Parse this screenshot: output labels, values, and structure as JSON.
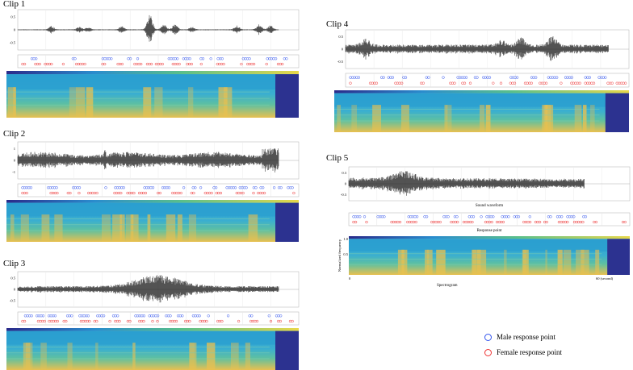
{
  "clips": [
    {
      "id": "clip1",
      "title": "Clip 1",
      "y_ticks": [
        "0.5",
        "0",
        "-0.5"
      ]
    },
    {
      "id": "clip2",
      "title": "Clip 2",
      "y_ticks": [
        "1",
        "0",
        "-1"
      ]
    },
    {
      "id": "clip3",
      "title": "Clip 3",
      "y_ticks": [
        "0.5",
        "0",
        "-0.5"
      ]
    },
    {
      "id": "clip4",
      "title": "Clip 4",
      "y_ticks": [
        "0.5",
        "0",
        "-0.5"
      ]
    },
    {
      "id": "clip5",
      "title": "Clip 5",
      "y_ticks": [
        "0.3",
        "0",
        "-0.3"
      ]
    }
  ],
  "captions": {
    "sound_waveform": "Sound waveform",
    "response_point": "Response point",
    "spectrogram": "Spectrogram",
    "spec_y_axis": "Normalized frequency",
    "spec_y_tick_top": "1.0",
    "spec_y_tick_mid": "0.5",
    "spec_x_tick_start": "0",
    "spec_x_tick_end": "60 (second)"
  },
  "legend": {
    "male_label": "Male response point",
    "female_label": "Female response point",
    "male_color": "#3355ee",
    "female_color": "#ee3333"
  },
  "colors": {
    "waveform": "#1a1a1a",
    "spec_top": "#2e3fa0",
    "spec_mid": "#2b9fd0",
    "spec_green": "#5fc0a0",
    "spec_yellow": "#e8c050",
    "spec_endblock": "#2c3290"
  }
}
